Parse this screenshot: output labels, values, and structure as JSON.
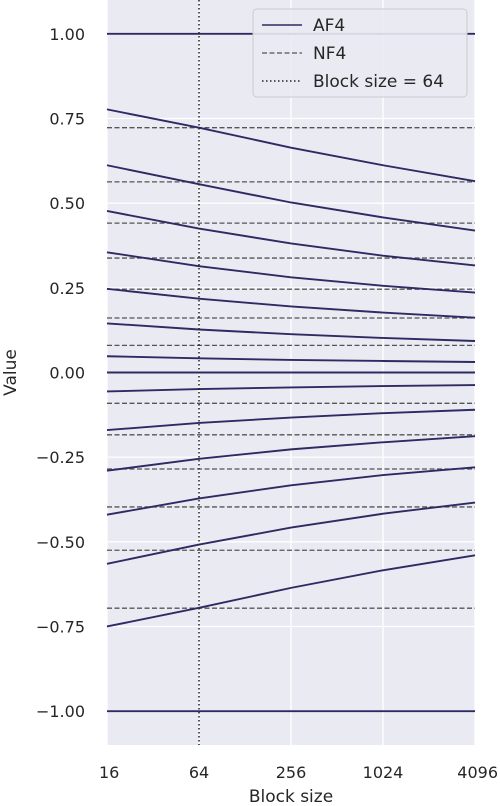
{
  "chart_data": {
    "type": "line",
    "xlabel": "Block size",
    "ylabel": "Value",
    "x_scale": "log2",
    "xlim": [
      16,
      4096
    ],
    "ylim": [
      -1.1,
      1.1
    ],
    "x_ticks": [
      16,
      64,
      256,
      1024,
      4096
    ],
    "x_tick_labels": [
      "16",
      "64",
      "256",
      "1024",
      "4096"
    ],
    "y_ticks": [
      1.0,
      0.75,
      0.5,
      0.25,
      0.0,
      -0.25,
      -0.5,
      -0.75,
      -1.0
    ],
    "y_tick_labels": [
      "1.00",
      "0.75",
      "0.50",
      "0.25",
      "0.00",
      "−0.25",
      "−0.50",
      "−0.75",
      "−1.00"
    ],
    "grid": true,
    "legend": {
      "placement": "top-right",
      "entries": [
        {
          "label": "AF4",
          "style": "solid"
        },
        {
          "label": "NF4",
          "style": "dashed"
        },
        {
          "label": "Block size = 64",
          "style": "dotted"
        }
      ]
    },
    "colors": {
      "af4": "#2e2a63",
      "nf4": "#555555",
      "vline": "#222222",
      "plot_bg": "#eaeaf2",
      "grid": "#ffffff"
    },
    "x": [
      16,
      64,
      256,
      1024,
      4096
    ],
    "af4_series": [
      [
        1.0,
        1.0,
        1.0,
        1.0,
        1.0
      ],
      [
        0.777,
        0.723,
        0.664,
        0.612,
        0.565
      ],
      [
        0.612,
        0.556,
        0.502,
        0.458,
        0.419
      ],
      [
        0.477,
        0.425,
        0.381,
        0.345,
        0.316
      ],
      [
        0.355,
        0.314,
        0.281,
        0.256,
        0.236
      ],
      [
        0.247,
        0.218,
        0.195,
        0.177,
        0.162
      ],
      [
        0.145,
        0.127,
        0.113,
        0.102,
        0.093
      ],
      [
        0.048,
        0.042,
        0.037,
        0.034,
        0.031
      ],
      [
        0.0,
        0.0,
        0.0,
        0.0,
        0.0
      ],
      [
        -0.056,
        -0.049,
        -0.044,
        -0.04,
        -0.037
      ],
      [
        -0.17,
        -0.149,
        -0.133,
        -0.12,
        -0.11
      ],
      [
        -0.29,
        -0.255,
        -0.227,
        -0.206,
        -0.188
      ],
      [
        -0.42,
        -0.372,
        -0.333,
        -0.303,
        -0.28
      ],
      [
        -0.565,
        -0.508,
        -0.458,
        -0.417,
        -0.384
      ],
      [
        -0.75,
        -0.695,
        -0.636,
        -0.584,
        -0.54
      ],
      [
        -1.0,
        -1.0,
        -1.0,
        -1.0,
        -1.0
      ]
    ],
    "nf4_levels": [
      1.0,
      0.723,
      0.563,
      0.441,
      0.338,
      0.246,
      0.161,
      0.08,
      0.0,
      -0.091,
      -0.184,
      -0.285,
      -0.397,
      -0.525,
      -0.696,
      -1.0
    ],
    "vline_x": 64
  }
}
